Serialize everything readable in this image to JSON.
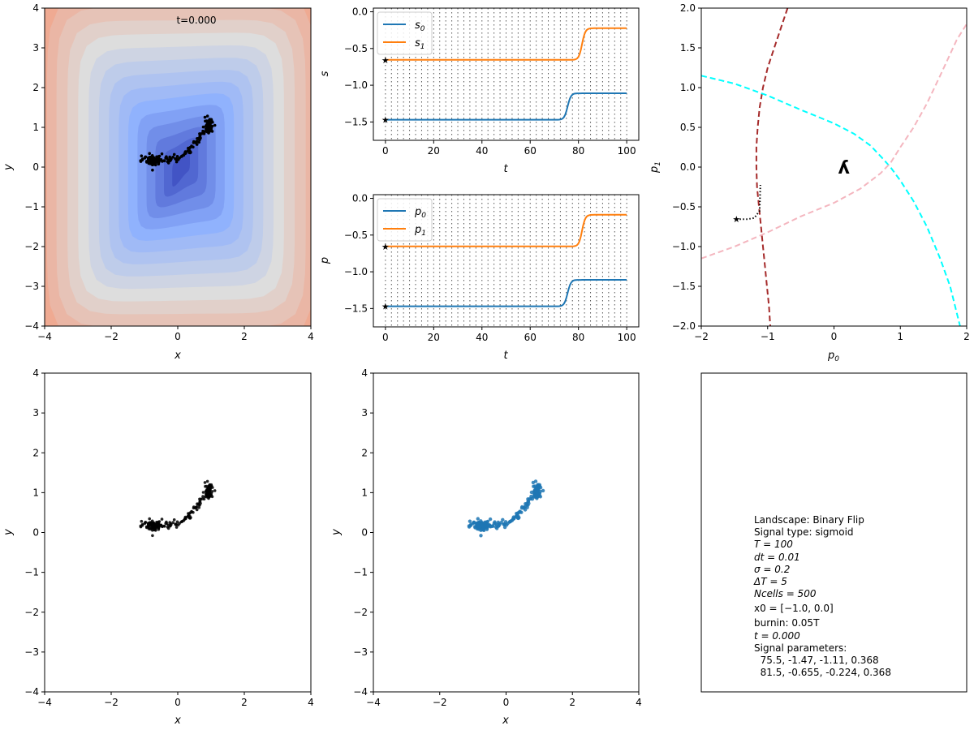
{
  "chart_data": [
    {
      "type": "contour",
      "panel": "landscape",
      "annotation": "t=0.000",
      "xlabel": "x",
      "ylabel": "y",
      "xlim": [
        -4,
        4
      ],
      "ylim": [
        -4,
        4
      ],
      "xticks": [
        -4,
        -2,
        0,
        2,
        4
      ],
      "yticks": [
        -4,
        -3,
        -2,
        -1,
        0,
        1,
        2,
        3,
        4
      ],
      "colormap": "coolwarm",
      "cell_cluster_color": "#000000",
      "cells_approx": [
        [
          0.9,
          1.0
        ],
        [
          0.95,
          1.1
        ],
        [
          0.85,
          0.9
        ],
        [
          0.7,
          0.7
        ],
        [
          0.5,
          0.5
        ],
        [
          0.3,
          0.4
        ],
        [
          0.0,
          0.35
        ],
        [
          -0.3,
          0.3
        ],
        [
          -0.6,
          0.25
        ],
        [
          -0.9,
          0.2
        ]
      ]
    },
    {
      "type": "line",
      "panel": "signal",
      "xlabel": "t",
      "ylabel": "s",
      "xlim": [
        -5,
        105
      ],
      "ylim": [
        -1.75,
        0.05
      ],
      "xticks": [
        0,
        20,
        40,
        60,
        80,
        100
      ],
      "yticks": [
        0.0,
        -0.5,
        -1.0,
        -1.5
      ],
      "vline_spacing": 2.5,
      "series": [
        {
          "name": "s0",
          "label_base": "s",
          "label_sub": "0",
          "color": "#1f77b4",
          "t_switch": 75.5,
          "initial": -1.47,
          "final": -1.11,
          "rate": 0.368
        },
        {
          "name": "s1",
          "label_base": "s",
          "label_sub": "1",
          "color": "#ff7f0e",
          "t_switch": 81.5,
          "initial": -0.655,
          "final": -0.224,
          "rate": 0.368
        }
      ]
    },
    {
      "type": "line",
      "panel": "parameters",
      "xlabel": "t",
      "ylabel": "p",
      "xlim": [
        -5,
        105
      ],
      "ylim": [
        -1.75,
        0.05
      ],
      "xticks": [
        0,
        20,
        40,
        60,
        80,
        100
      ],
      "yticks": [
        0.0,
        -0.5,
        -1.0,
        -1.5
      ],
      "vline_spacing": 2.5,
      "series": [
        {
          "name": "p0",
          "label_base": "p",
          "label_sub": "0",
          "color": "#1f77b4",
          "t_switch": 75.5,
          "initial": -1.47,
          "final": -1.11,
          "rate": 0.368
        },
        {
          "name": "p1",
          "label_base": "p",
          "label_sub": "1",
          "color": "#ff7f0e",
          "t_switch": 81.5,
          "initial": -0.655,
          "final": -0.224,
          "rate": 0.368
        }
      ]
    },
    {
      "type": "line",
      "panel": "bifurcation",
      "xlabel": "p",
      "xlabel_sub": "0",
      "ylabel": "p",
      "ylabel_sub": "1",
      "xlim": [
        -2,
        2
      ],
      "ylim": [
        -2,
        2
      ],
      "xticks": [
        -2,
        -1,
        0,
        1,
        2
      ],
      "yticks": [
        2.0,
        1.5,
        1.0,
        0.5,
        0.0,
        -0.5,
        -1.0,
        -1.5,
        -2.0
      ],
      "curves": [
        {
          "name": "fold-curve-1",
          "color": "#a52a2a",
          "points": [
            [
              -0.7,
              2.0
            ],
            [
              -0.8,
              1.75
            ],
            [
              -0.9,
              1.5
            ],
            [
              -1.0,
              1.25
            ],
            [
              -1.07,
              1.0
            ],
            [
              -1.12,
              0.75
            ],
            [
              -1.15,
              0.5
            ],
            [
              -1.17,
              0.25
            ],
            [
              -1.17,
              0.0
            ],
            [
              -1.16,
              -0.25
            ],
            [
              -1.13,
              -0.5
            ],
            [
              -1.1,
              -0.75
            ],
            [
              -1.07,
              -1.0
            ],
            [
              -1.04,
              -1.25
            ],
            [
              -1.01,
              -1.5
            ],
            [
              -0.98,
              -1.75
            ],
            [
              -0.96,
              -2.0
            ]
          ]
        },
        {
          "name": "fold-curve-2",
          "color": "#00ffff",
          "points": [
            [
              -2.0,
              1.15
            ],
            [
              -1.5,
              1.05
            ],
            [
              -1.0,
              0.9
            ],
            [
              -0.5,
              0.72
            ],
            [
              0.0,
              0.55
            ],
            [
              0.3,
              0.42
            ],
            [
              0.55,
              0.27
            ],
            [
              0.72,
              0.12
            ],
            [
              0.85,
              0.0
            ],
            [
              1.0,
              -0.17
            ],
            [
              1.2,
              -0.43
            ],
            [
              1.4,
              -0.75
            ],
            [
              1.6,
              -1.15
            ],
            [
              1.75,
              -1.5
            ],
            [
              1.9,
              -2.0
            ]
          ]
        },
        {
          "name": "fold-curve-3",
          "color": "#f4b6bf",
          "points": [
            [
              -2.0,
              -1.15
            ],
            [
              -1.5,
              -1.0
            ],
            [
              -1.0,
              -0.82
            ],
            [
              -0.5,
              -0.62
            ],
            [
              0.0,
              -0.45
            ],
            [
              0.4,
              -0.27
            ],
            [
              0.7,
              -0.08
            ],
            [
              0.85,
              0.05
            ],
            [
              1.0,
              0.25
            ],
            [
              1.2,
              0.5
            ],
            [
              1.4,
              0.8
            ],
            [
              1.6,
              1.15
            ],
            [
              1.85,
              1.6
            ],
            [
              2.0,
              1.8
            ]
          ]
        }
      ],
      "trajectory": [
        [
          -1.47,
          -0.655
        ],
        [
          -1.3,
          -0.655
        ],
        [
          -1.2,
          -0.64
        ],
        [
          -1.12,
          -0.55
        ],
        [
          -1.11,
          -0.224
        ]
      ],
      "start_marker": [
        -1.47,
        -0.655
      ],
      "cusp_glyph": "ʎ",
      "cusp_center": [
        0.15,
        0.0
      ]
    },
    {
      "type": "scatter",
      "panel": "cells-black",
      "xlabel": "x",
      "ylabel": "y",
      "xlim": [
        -4,
        4
      ],
      "ylim": [
        -4,
        4
      ],
      "xticks": [
        -4,
        -2,
        0,
        2,
        4
      ],
      "yticks": [
        -4,
        -3,
        -2,
        -1,
        0,
        1,
        2,
        3,
        4
      ],
      "color": "#000000"
    },
    {
      "type": "scatter",
      "panel": "cells-blue",
      "xlabel": "x",
      "ylabel": "y",
      "xlim": [
        -4,
        4
      ],
      "ylim": [
        -4,
        4
      ],
      "xticks": [
        -4,
        -2,
        0,
        2,
        4
      ],
      "yticks": [
        -4,
        -3,
        -2,
        -1,
        0,
        1,
        2,
        3,
        4
      ],
      "color": "#1f77b4"
    }
  ],
  "info": {
    "lines": [
      "Landscape: Binary Flip",
      "Signal type: sigmoid",
      "T = 100",
      "dt = 0.01",
      "σ = 0.2",
      "ΔT = 5",
      "Ncells = 500",
      "x0 = [−1.0, 0.0]",
      "burnin: 0.05T",
      "t = 0.000",
      "Signal parameters:",
      "  75.5, -1.47, -1.11, 0.368",
      "  81.5, -0.655, -0.224, 0.368"
    ]
  }
}
